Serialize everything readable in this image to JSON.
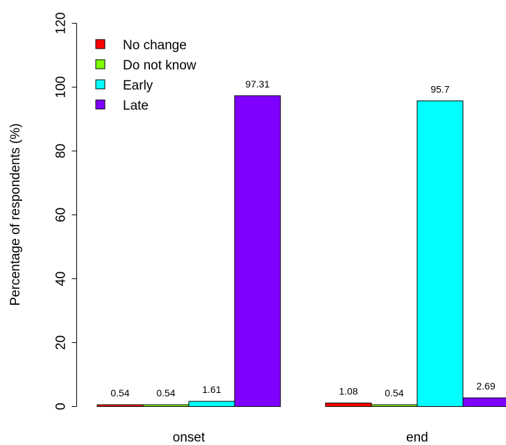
{
  "chart_data": {
    "type": "bar",
    "title": "",
    "xlabel": "",
    "ylabel": "Percentage of respondents (%)",
    "ylim": [
      0,
      120
    ],
    "yticks": [
      0,
      20,
      40,
      60,
      80,
      100,
      120
    ],
    "grid": false,
    "legend_position": "top-left",
    "categories": [
      "onset",
      "end"
    ],
    "series": [
      {
        "name": "No change",
        "color": "#ff0000",
        "values": [
          0.54,
          1.08
        ],
        "labels": [
          "0.54",
          "1.08"
        ]
      },
      {
        "name": "Do not know",
        "color": "#80ff00",
        "values": [
          0.54,
          0.54
        ],
        "labels": [
          "0.54",
          "0.54"
        ]
      },
      {
        "name": "Early",
        "color": "#00ffff",
        "values": [
          1.61,
          95.7
        ],
        "labels": [
          "1.61",
          "95.7"
        ]
      },
      {
        "name": "Late",
        "color": "#8000ff",
        "values": [
          97.31,
          2.69
        ],
        "labels": [
          "97.31",
          "2.69"
        ]
      }
    ]
  }
}
